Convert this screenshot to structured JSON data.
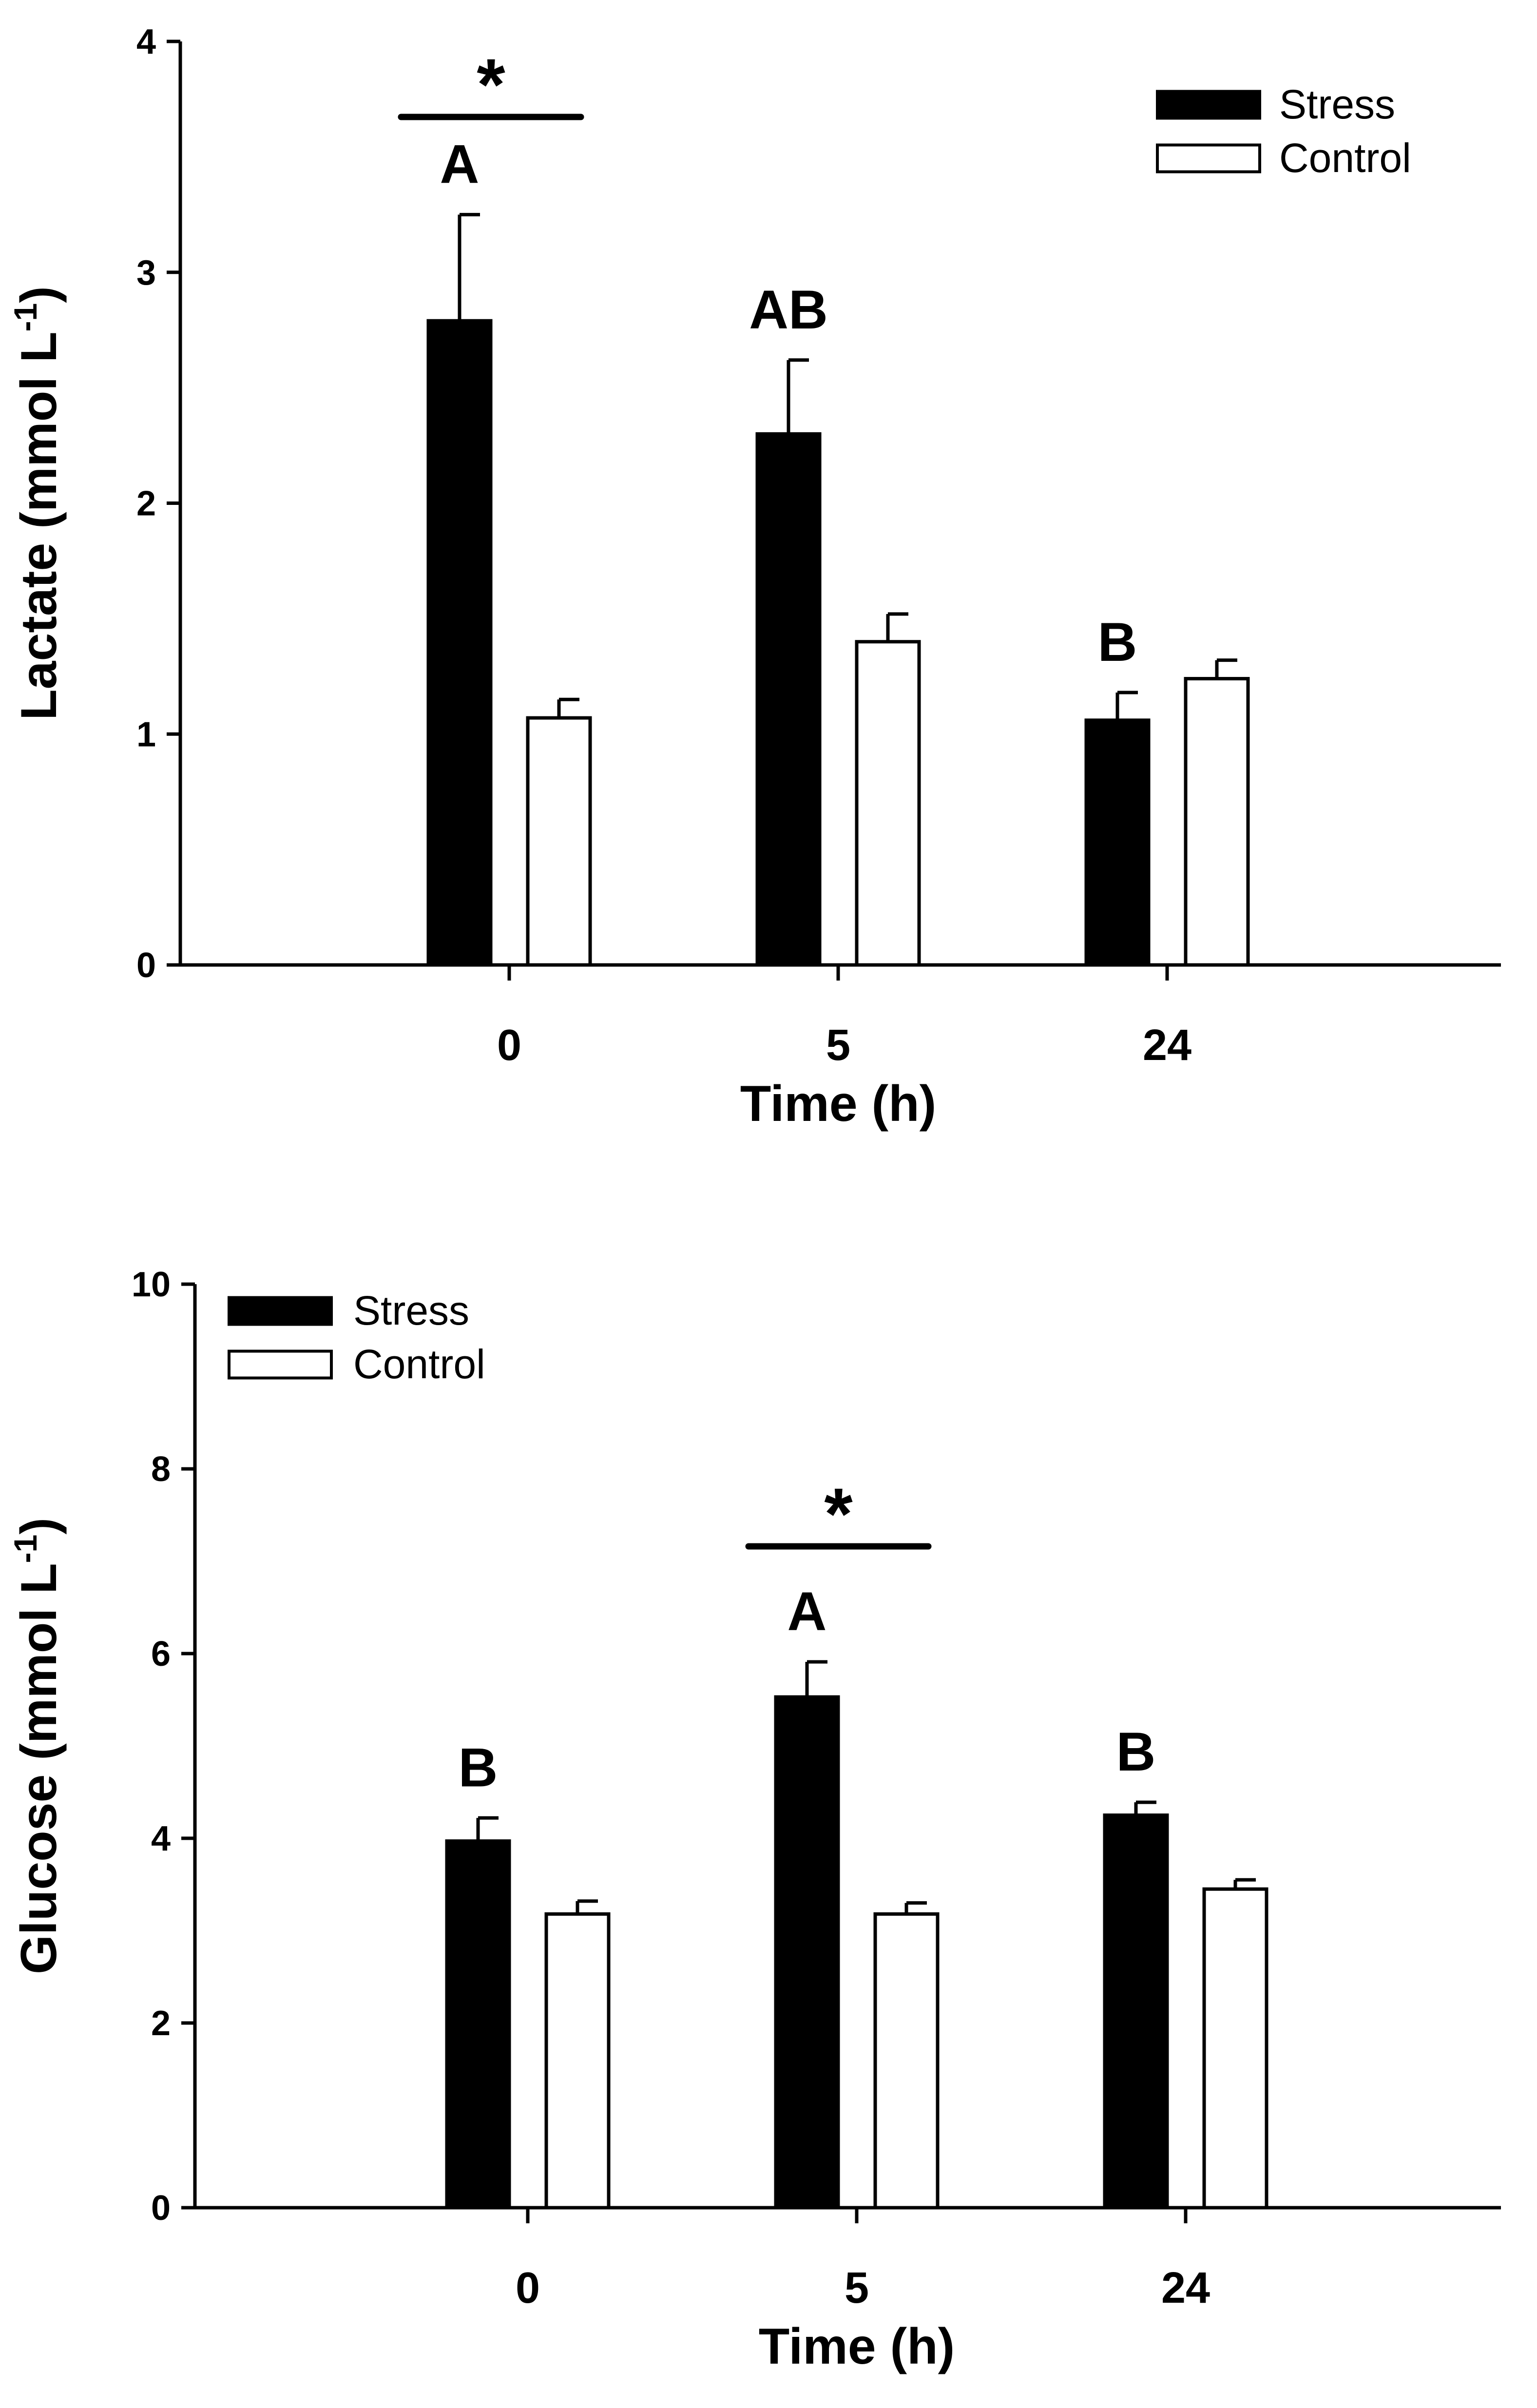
{
  "chart_data": [
    {
      "type": "bar",
      "categories": [
        "0",
        "5",
        "24"
      ],
      "series": [
        {
          "name": "Stress",
          "values": [
            2.79,
            2.3,
            1.06
          ],
          "errors": [
            0.46,
            0.32,
            0.12
          ],
          "color": "#000000"
        },
        {
          "name": "Control",
          "values": [
            1.07,
            1.4,
            1.24
          ],
          "errors": [
            0.08,
            0.12,
            0.08
          ],
          "color": "#ffffff"
        }
      ],
      "xlabel": "Time (h)",
      "ylabel": "Lactate (mmol L",
      "ylabel_sup": "-1",
      "ylabel_end": ")",
      "ylim": [
        0,
        4
      ],
      "yticks": [
        "0",
        "1",
        "2",
        "3",
        "4"
      ],
      "legend": {
        "entries": [
          "Stress",
          "Control"
        ],
        "placement": "top-right"
      },
      "letters": [
        "A",
        "AB",
        "B"
      ],
      "significance": {
        "category": "0",
        "symbol": "*"
      }
    },
    {
      "type": "bar",
      "categories": [
        "0",
        "5",
        "24"
      ],
      "series": [
        {
          "name": "Stress",
          "values": [
            3.97,
            5.53,
            4.25
          ],
          "errors": [
            0.25,
            0.38,
            0.14
          ],
          "color": "#000000"
        },
        {
          "name": "Control",
          "values": [
            3.18,
            3.18,
            3.45
          ],
          "errors": [
            0.14,
            0.12,
            0.1
          ],
          "color": "#ffffff"
        }
      ],
      "xlabel": "Time (h)",
      "ylabel": "Glucose (mmol L",
      "ylabel_sup": "-1",
      "ylabel_end": ")",
      "ylim": [
        0,
        10
      ],
      "yticks": [
        "0",
        "2",
        "4",
        "6",
        "8",
        "10"
      ],
      "legend": {
        "entries": [
          "Stress",
          "Control"
        ],
        "placement": "top-left"
      },
      "letters": [
        "B",
        "A",
        "B"
      ],
      "significance": {
        "category": "5",
        "symbol": "*"
      }
    }
  ]
}
